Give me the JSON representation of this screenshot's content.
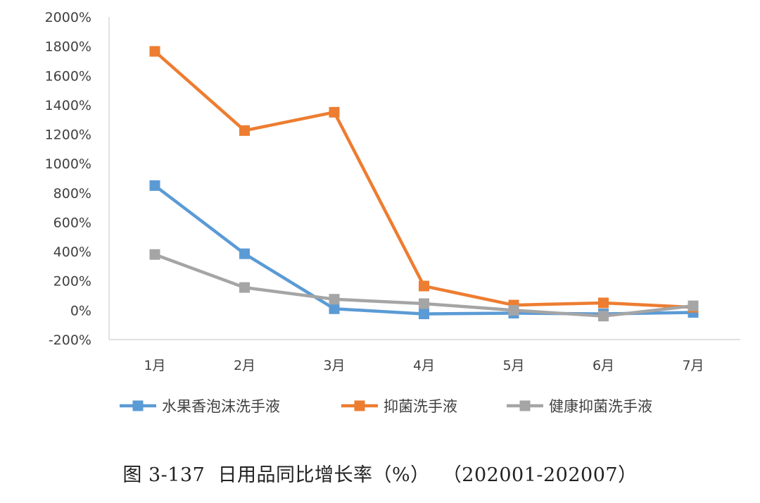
{
  "chart_data": {
    "type": "line",
    "categories": [
      "1月",
      "2月",
      "3月",
      "4月",
      "5月",
      "6月",
      "7月"
    ],
    "y_ticks": [
      "2000%",
      "1800%",
      "1600%",
      "1400%",
      "1200%",
      "1000%",
      "800%",
      "600%",
      "400%",
      "200%",
      "0%",
      "-200%"
    ],
    "ylim": [
      -200,
      2000
    ],
    "unit": "%",
    "grid": false,
    "legend_position": "bottom",
    "series": [
      {
        "name": "水果香泡沫洗手液",
        "color": "#5B9BD5",
        "values": [
          850,
          385,
          10,
          -25,
          -20,
          -25,
          -15
        ]
      },
      {
        "name": "抑菌洗手液",
        "color": "#ED7D31",
        "values": [
          1765,
          1225,
          1350,
          165,
          35,
          50,
          20
        ]
      },
      {
        "name": "健康抑菌洗手液",
        "color": "#A5A5A5",
        "values": [
          380,
          155,
          75,
          45,
          0,
          -40,
          30
        ]
      }
    ]
  },
  "caption": "图 3-137  日用品同比增长率（%）  （202001-202007）"
}
